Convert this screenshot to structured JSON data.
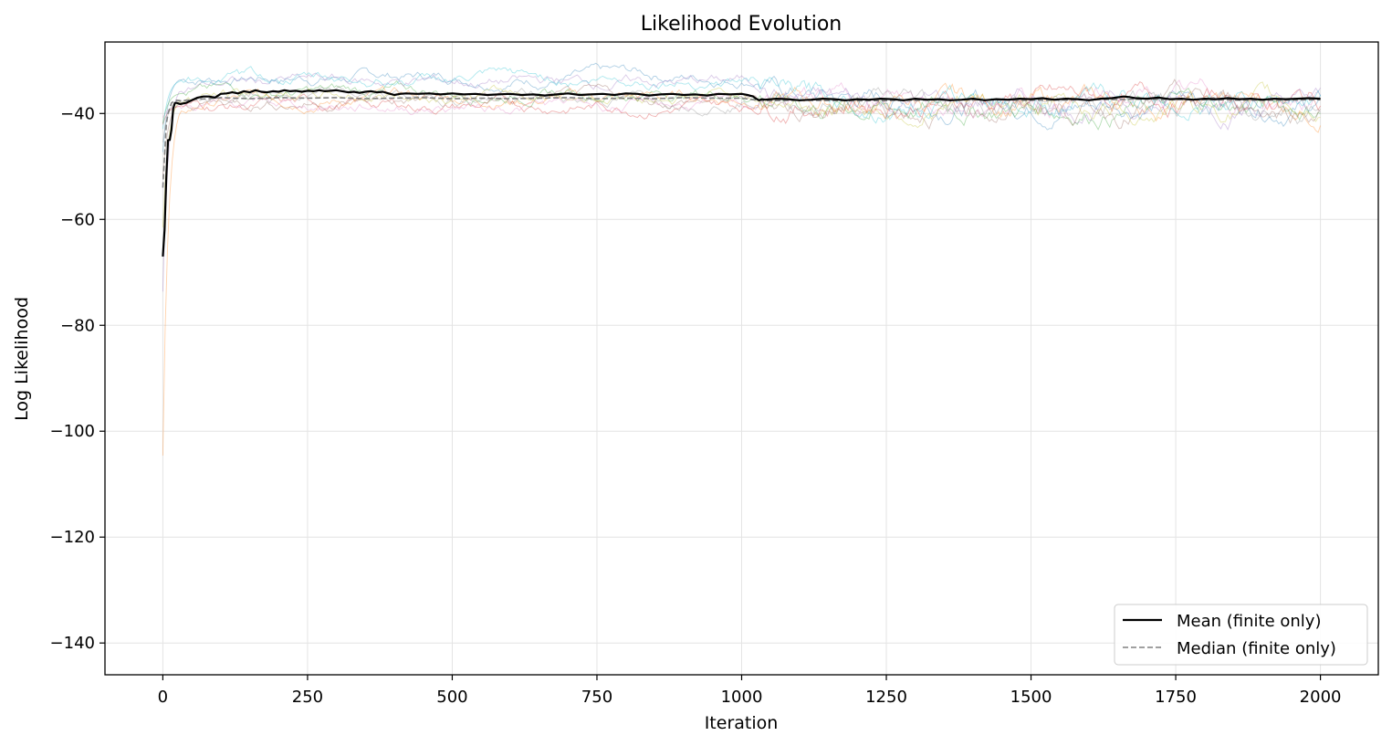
{
  "chart_data": {
    "type": "line",
    "title": "Likelihood Evolution",
    "xlabel": "Iteration",
    "ylabel": "Log Likelihood",
    "xlim": [
      -100,
      2100
    ],
    "ylim": [
      -146,
      -26.5
    ],
    "xticks": [
      0,
      250,
      500,
      750,
      1000,
      1250,
      1500,
      1750,
      2000
    ],
    "yticks": [
      -140,
      -120,
      -100,
      -80,
      -60,
      -40
    ],
    "xtick_labels": [
      "0",
      "250",
      "500",
      "750",
      "1000",
      "1250",
      "1500",
      "1750",
      "2000"
    ],
    "ytick_labels": [
      "−140",
      "−120",
      "−100",
      "−80",
      "−60",
      "−40"
    ],
    "grid": true,
    "legend_position": "bottom-right",
    "series": [
      {
        "name": "Mean (finite only)",
        "color": "#000000",
        "style": "solid",
        "x": [
          0,
          3,
          6,
          9,
          12,
          15,
          18,
          21,
          24,
          30,
          40,
          50,
          60,
          70,
          80,
          90,
          100,
          110,
          120,
          130,
          140,
          150,
          160,
          170,
          180,
          190,
          200,
          210,
          220,
          230,
          240,
          250,
          260,
          270,
          280,
          290,
          300,
          310,
          320,
          330,
          340,
          350,
          360,
          370,
          380,
          390,
          400,
          410,
          420,
          440,
          460,
          480,
          500,
          520,
          540,
          560,
          580,
          600,
          620,
          640,
          660,
          680,
          700,
          720,
          740,
          760,
          780,
          800,
          820,
          840,
          860,
          880,
          900,
          920,
          940,
          960,
          980,
          1000,
          1010,
          1020,
          1025,
          1030,
          1035,
          1040,
          1060,
          1080,
          1100,
          1120,
          1140,
          1160,
          1180,
          1200,
          1220,
          1240,
          1260,
          1280,
          1300,
          1320,
          1340,
          1360,
          1380,
          1400,
          1420,
          1440,
          1460,
          1480,
          1500,
          1520,
          1540,
          1560,
          1580,
          1600,
          1620,
          1640,
          1660,
          1670,
          1680,
          1700,
          1720,
          1740,
          1760,
          1780,
          1800,
          1820,
          1840,
          1860,
          1880,
          1900,
          1920,
          1940,
          1960,
          1980,
          2000
        ],
        "y": [
          -67,
          -62,
          -52,
          -45,
          -45,
          -43,
          -39,
          -38,
          -38,
          -38.2,
          -38,
          -37.5,
          -37,
          -36.8,
          -36.8,
          -37,
          -36.3,
          -36.2,
          -36,
          -36.2,
          -35.8,
          -36,
          -35.6,
          -35.9,
          -36,
          -35.8,
          -35.9,
          -35.6,
          -35.8,
          -35.7,
          -35.9,
          -35.7,
          -35.8,
          -35.6,
          -35.8,
          -35.7,
          -35.6,
          -35.8,
          -36,
          -35.9,
          -36.1,
          -35.9,
          -35.8,
          -36,
          -35.9,
          -36.2,
          -36.5,
          -36.3,
          -36.2,
          -36.3,
          -36.2,
          -36.4,
          -36.2,
          -36.4,
          -36.3,
          -36.5,
          -36.4,
          -36.3,
          -36.5,
          -36.4,
          -36.6,
          -36.4,
          -36.2,
          -36.5,
          -36.4,
          -36.3,
          -36.5,
          -36.2,
          -36.3,
          -36.6,
          -36.4,
          -36.3,
          -36.5,
          -36.4,
          -36.6,
          -36.3,
          -36.4,
          -36.3,
          -36.5,
          -36.8,
          -37.2,
          -37.5,
          -37.3,
          -37.4,
          -37.2,
          -37.3,
          -37.5,
          -37.4,
          -37.2,
          -37.3,
          -37.5,
          -37.3,
          -37.4,
          -37.2,
          -37.3,
          -37.5,
          -37.2,
          -37.4,
          -37.3,
          -37.5,
          -37.4,
          -37.2,
          -37.5,
          -37.3,
          -37.4,
          -37.2,
          -37.3,
          -37.1,
          -37.4,
          -37.2,
          -37.3,
          -37.5,
          -37.2,
          -37.1,
          -36.8,
          -36.9,
          -37.1,
          -37.2,
          -37,
          -37.3,
          -37.2,
          -37.4,
          -37.2,
          -37.3,
          -37.1,
          -37.3,
          -37.2,
          -37.4,
          -37.2,
          -37.3,
          -37.2,
          -37.1,
          -37.2
        ]
      },
      {
        "name": "Median (finite only)",
        "color": "#808080",
        "style": "dashed",
        "x": [
          0,
          3,
          6,
          9,
          12,
          15,
          18,
          21,
          24,
          30,
          40,
          60,
          80,
          100,
          150,
          200,
          250,
          300,
          350,
          400,
          450,
          500,
          550,
          600,
          650,
          700,
          750,
          800,
          850,
          900,
          950,
          1000,
          1020,
          1040,
          1100,
          1200,
          1300,
          1400,
          1500,
          1600,
          1700,
          1800,
          1900,
          2000
        ],
        "y": [
          -54,
          -48,
          -42,
          -40,
          -39,
          -38,
          -37.8,
          -37.6,
          -37.5,
          -37.6,
          -37.5,
          -37.3,
          -37.2,
          -37,
          -37.2,
          -37,
          -37.1,
          -37,
          -37.2,
          -37.1,
          -37,
          -37.2,
          -37.1,
          -37.2,
          -37.1,
          -37,
          -37.2,
          -37.1,
          -37.2,
          -37,
          -37.1,
          -37.1,
          -37.4,
          -37.6,
          -37.5,
          -37.6,
          -37.5,
          -37.4,
          -37.5,
          -37.4,
          -37.3,
          -37.4,
          -37.5,
          -37.4
        ]
      }
    ],
    "background_traces": {
      "count": 10,
      "colors": [
        "#1f77b4",
        "#ff7f0e",
        "#2ca02c",
        "#d62728",
        "#9467bd",
        "#8c564b",
        "#e377c2",
        "#7f7f7f",
        "#bcbd22",
        "#17becf"
      ]
    }
  }
}
